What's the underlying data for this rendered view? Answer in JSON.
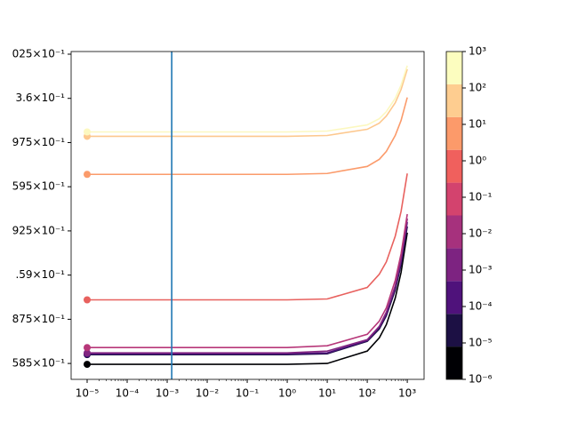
{
  "chart_data": {
    "type": "line",
    "xscale": "log",
    "x": [
      1e-05,
      1,
      10,
      100,
      200,
      300,
      500,
      700,
      1000
    ],
    "series": [
      {
        "color": "#000004",
        "values": [
          0.3584,
          0.3584,
          0.3585,
          0.3599,
          0.3614,
          0.3629,
          0.3659,
          0.3688,
          0.3733
        ]
      },
      {
        "color": "#1d1147",
        "values": [
          0.3595,
          0.3595,
          0.3596,
          0.361,
          0.3624,
          0.3639,
          0.3668,
          0.3697,
          0.374
        ]
      },
      {
        "color": "#51127c",
        "values": [
          0.3596,
          0.3596,
          0.3597,
          0.3611,
          0.3626,
          0.3641,
          0.3671,
          0.37,
          0.3745
        ]
      },
      {
        "color": "#822681",
        "values": [
          0.3597,
          0.3597,
          0.3599,
          0.3612,
          0.3627,
          0.3643,
          0.3673,
          0.3703,
          0.3749
        ]
      },
      {
        "color": "#b73779",
        "values": [
          0.3603,
          0.3603,
          0.3605,
          0.3618,
          0.3633,
          0.3648,
          0.3679,
          0.3709,
          0.3754
        ]
      },
      {
        "color": "#e8615e",
        "values": [
          0.3657,
          0.3657,
          0.3658,
          0.3671,
          0.3686,
          0.37,
          0.3729,
          0.3757,
          0.38
        ]
      },
      {
        "color": "#fb9b6b",
        "values": [
          0.3799,
          0.3799,
          0.38,
          0.3808,
          0.3816,
          0.3825,
          0.3843,
          0.386,
          0.3886
        ]
      },
      {
        "color": "#fdc88e",
        "values": [
          0.3842,
          0.3842,
          0.3843,
          0.385,
          0.3857,
          0.3865,
          0.388,
          0.3895,
          0.3918
        ]
      },
      {
        "color": "#fcf8c0",
        "values": [
          0.3847,
          0.3847,
          0.3848,
          0.3855,
          0.3862,
          0.387,
          0.3885,
          0.39,
          0.3922
        ]
      }
    ],
    "vline": {
      "x": 0.0013,
      "color": "#1f77b4"
    },
    "xlim": [
      3.981e-06,
      2630
    ],
    "xticks": [
      {
        "value": 1e-05,
        "label": "10⁻⁵"
      },
      {
        "value": 0.0001,
        "label": "10⁻⁴"
      },
      {
        "value": 0.001,
        "label": "10⁻³"
      },
      {
        "value": 0.01,
        "label": "10⁻²"
      },
      {
        "value": 0.1,
        "label": "10⁻¹"
      },
      {
        "value": 1,
        "label": "10⁰"
      },
      {
        "value": 10,
        "label": "10¹"
      },
      {
        "value": 100,
        "label": "10²"
      },
      {
        "value": 1000,
        "label": "10³"
      }
    ],
    "ylim": [
      0.3567,
      0.3938
    ],
    "yticks": [
      {
        "value": 0.3585,
        "label": "585×10⁻¹"
      },
      {
        "value": 0.3635,
        "label": "875×10⁻¹"
      },
      {
        "value": 0.3685,
        "label": ".59×10⁻¹"
      },
      {
        "value": 0.3735,
        "label": "925×10⁻¹"
      },
      {
        "value": 0.3785,
        "label": "595×10⁻¹"
      },
      {
        "value": 0.3835,
        "label": "975×10⁻¹"
      },
      {
        "value": 0.3885,
        "label": "3.6×10⁻¹"
      },
      {
        "value": 0.3935,
        "label": "025×10⁻¹"
      }
    ],
    "colorbar": {
      "lim": [
        1e-06,
        1000
      ],
      "levels": [
        1e-06,
        7.943e-06,
        6.31e-05,
        0.0005012,
        0.003981,
        0.03162,
        0.2512,
        1.995,
        15.85,
        125.9,
        1000
      ],
      "colors": [
        "#000004",
        "#1c1044",
        "#4f127b",
        "#7d2381",
        "#a6317d",
        "#d3436e",
        "#f0605d",
        "#fc9a6a",
        "#fecd90",
        "#fcfdbf"
      ],
      "ticks": [
        {
          "value": 1e-06,
          "label": "10⁻⁶"
        },
        {
          "value": 1e-05,
          "label": "10⁻⁵"
        },
        {
          "value": 0.0001,
          "label": "10⁻⁴"
        },
        {
          "value": 0.001,
          "label": "10⁻³"
        },
        {
          "value": 0.01,
          "label": "10⁻²"
        },
        {
          "value": 0.1,
          "label": "10⁻¹"
        },
        {
          "value": 1,
          "label": "10⁰"
        },
        {
          "value": 10,
          "label": "10¹"
        },
        {
          "value": 100,
          "label": "10²"
        },
        {
          "value": 1000,
          "label": "10³"
        }
      ]
    }
  }
}
